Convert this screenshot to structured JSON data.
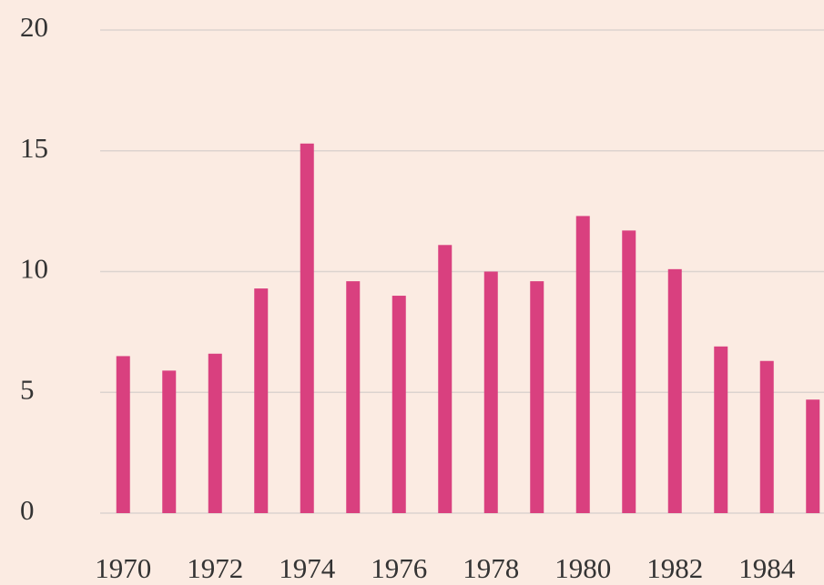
{
  "chart_data": {
    "type": "bar",
    "categories": [
      "1970",
      null,
      "1972",
      null,
      "1974",
      null,
      "1976",
      null,
      "1978",
      null,
      "1980",
      null,
      "1982",
      null,
      "1984",
      null
    ],
    "values": [
      6.5,
      5.9,
      6.6,
      9.3,
      15.3,
      9.6,
      9.0,
      11.1,
      10.0,
      9.6,
      12.3,
      11.7,
      10.1,
      6.9,
      6.3,
      4.7
    ],
    "color": "#d9407f",
    "ylim": [
      0,
      20
    ],
    "yticks": [
      0,
      5,
      10,
      15,
      20
    ],
    "grid": true
  }
}
